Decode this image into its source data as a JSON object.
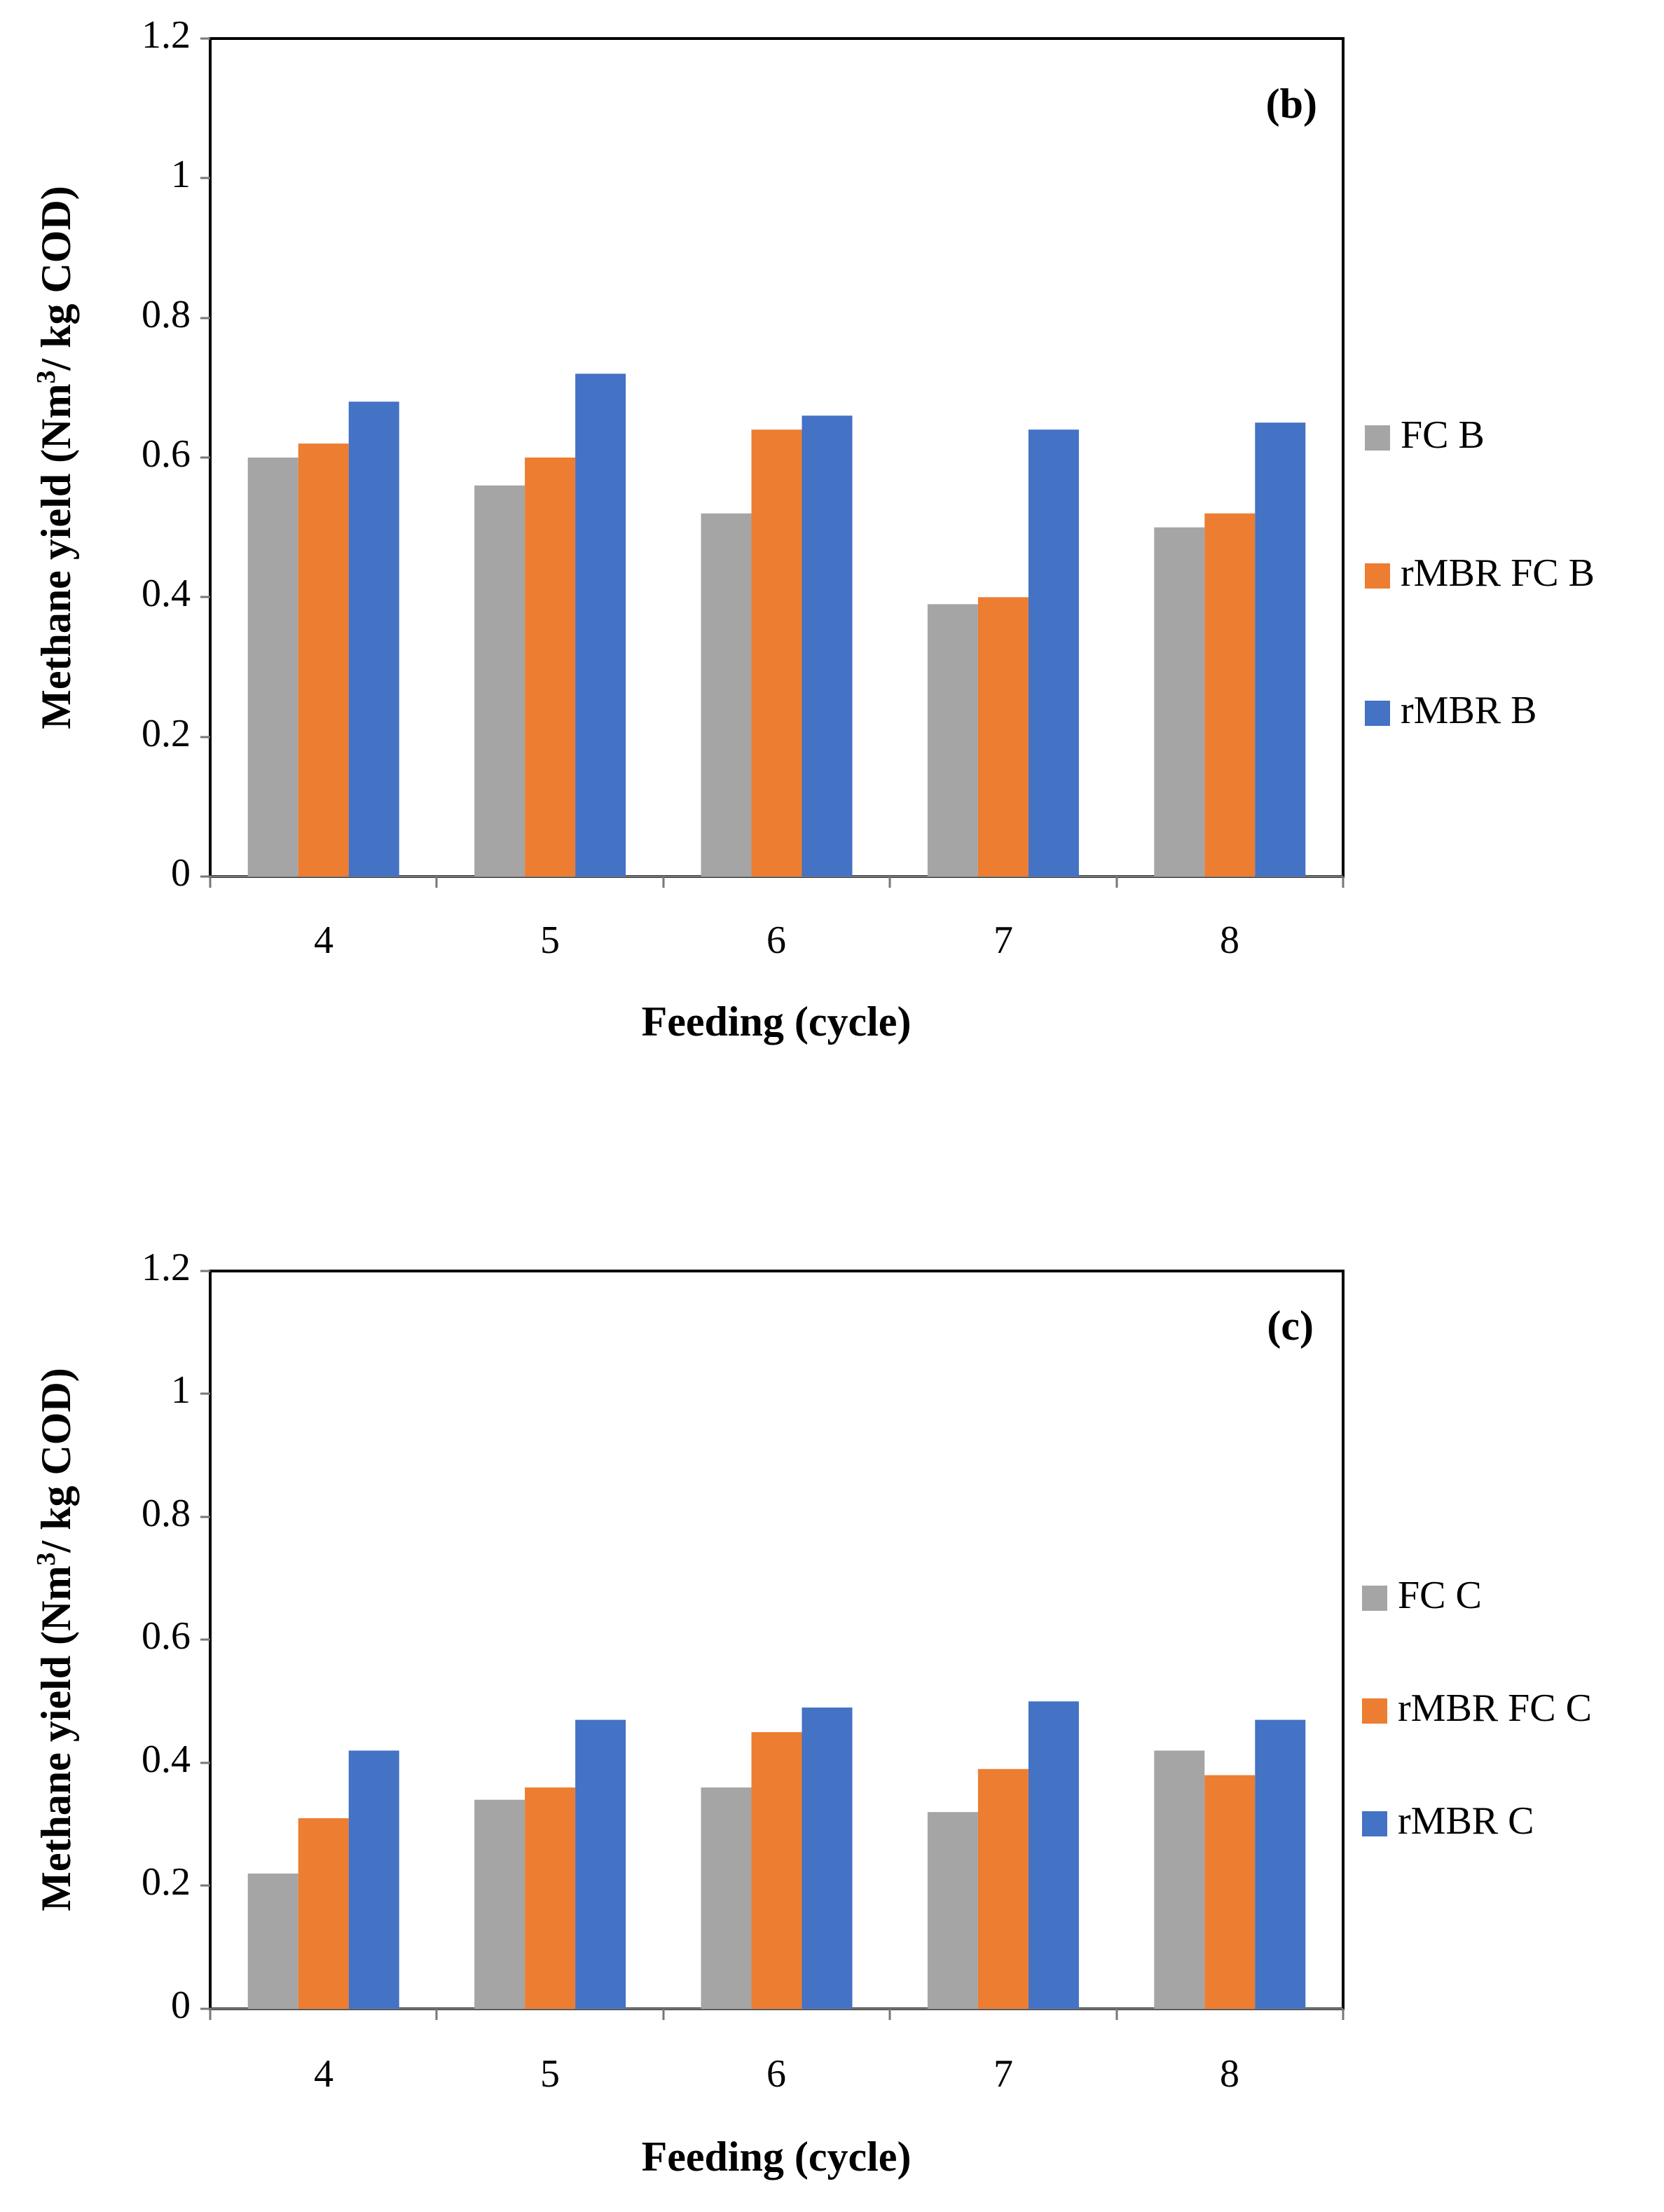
{
  "colors": {
    "fc": "#a5a5a5",
    "rmbr_fc": "#ed7d31",
    "rmbr": "#4472c4"
  },
  "chart_data": [
    {
      "type": "bar",
      "panel_label": "(b)",
      "categories": [
        "4",
        "5",
        "6",
        "7",
        "8"
      ],
      "xlabel": "Feeding (cycle)",
      "ylabel_main": "Methane yield (Nm",
      "ylabel_sup": "3",
      "ylabel_tail": "/ kg COD)",
      "ylim": [
        0,
        1.2
      ],
      "yticks": [
        "0",
        "0.2",
        "0.4",
        "0.6",
        "0.8",
        "1",
        "1.2"
      ],
      "legend_position": "right",
      "series": [
        {
          "name": "FC B",
          "values": [
            0.6,
            0.56,
            0.52,
            0.39,
            0.5
          ]
        },
        {
          "name": "rMBR FC B",
          "values": [
            0.62,
            0.6,
            0.64,
            0.4,
            0.52
          ]
        },
        {
          "name": "rMBR B",
          "values": [
            0.68,
            0.72,
            0.66,
            0.64,
            0.65
          ]
        }
      ]
    },
    {
      "type": "bar",
      "panel_label": "(c)",
      "categories": [
        "4",
        "5",
        "6",
        "7",
        "8"
      ],
      "xlabel": "Feeding (cycle)",
      "ylabel_main": "Methane yield (Nm",
      "ylabel_sup": "3",
      "ylabel_tail": "/ kg COD)",
      "ylim": [
        0,
        1.2
      ],
      "yticks": [
        "0",
        "0.2",
        "0.4",
        "0.6",
        "0.8",
        "1",
        "1.2"
      ],
      "legend_position": "right",
      "series": [
        {
          "name": "FC C",
          "values": [
            0.22,
            0.34,
            0.36,
            0.32,
            0.42
          ]
        },
        {
          "name": "rMBR FC C",
          "values": [
            0.31,
            0.36,
            0.45,
            0.39,
            0.38
          ]
        },
        {
          "name": "rMBR C",
          "values": [
            0.42,
            0.47,
            0.49,
            0.5,
            0.47
          ]
        }
      ]
    }
  ]
}
